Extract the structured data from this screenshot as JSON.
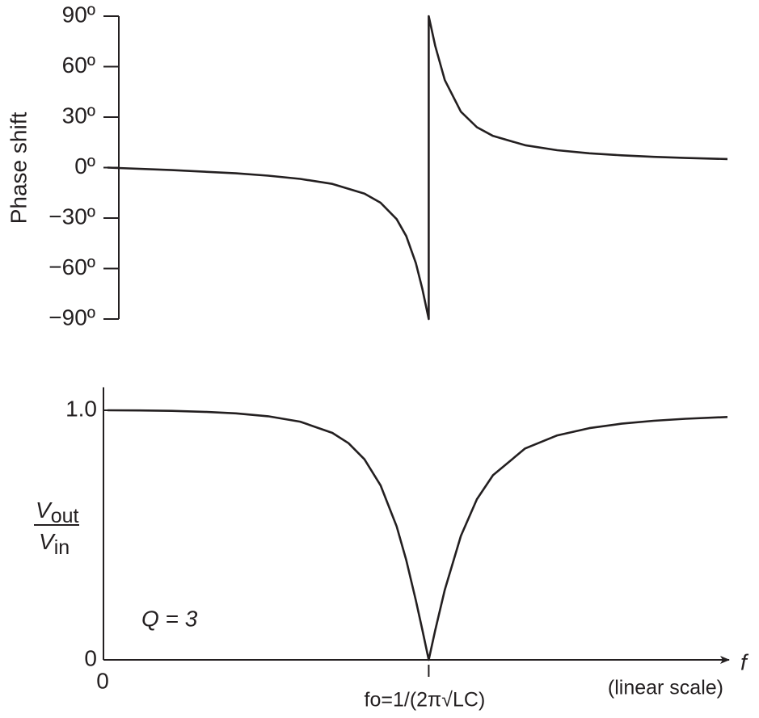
{
  "chart_data": [
    {
      "type": "line",
      "y_label": "Phase shift",
      "x": [
        0,
        0.2,
        0.4,
        0.5,
        0.6,
        0.7,
        0.8,
        0.85,
        0.9,
        0.93,
        0.96,
        0.98,
        1,
        1,
        1.02,
        1.05,
        1.1,
        1.15,
        1.2,
        1.3,
        1.4,
        1.5,
        1.6,
        1.7,
        1.8,
        1.93
      ],
      "values": [
        0,
        -1.5,
        -3.4,
        -4.8,
        -6.7,
        -9.7,
        -15.5,
        -20.9,
        -30.6,
        -40.7,
        -56.8,
        -72.1,
        -90,
        90,
        72.4,
        52.0,
        33.2,
        24.0,
        18.8,
        13.3,
        10.3,
        8.5,
        7.3,
        6.4,
        5.7,
        5.1
      ],
      "color": "#231f20",
      "xlim": [
        0,
        1.93
      ],
      "ylim": [
        -90,
        90
      ],
      "yticks": [
        {
          "value": -90,
          "label": "−90º"
        },
        {
          "value": -60,
          "label": "−60º"
        },
        {
          "value": -30,
          "label": "−30º"
        },
        {
          "value": 0,
          "label": "0º"
        },
        {
          "value": 30,
          "label": "30º"
        },
        {
          "value": 60,
          "label": "60º"
        },
        {
          "value": 90,
          "label": "90º"
        }
      ]
    },
    {
      "type": "line",
      "y_label": {
        "numerator": [
          "V",
          "out"
        ],
        "denominator": [
          "V",
          "in"
        ]
      },
      "x_label": "f",
      "x_note": "(linear scale)",
      "annotation": "Q = 3",
      "x": [
        0,
        0.1,
        0.2,
        0.3,
        0.4,
        0.5,
        0.6,
        0.7,
        0.75,
        0.8,
        0.85,
        0.9,
        0.93,
        0.96,
        0.98,
        1,
        1.02,
        1.05,
        1.1,
        1.15,
        1.2,
        1.3,
        1.4,
        1.5,
        1.6,
        1.7,
        1.8,
        1.93
      ],
      "values": [
        1,
        0.9994,
        0.9976,
        0.994,
        0.9876,
        0.9762,
        0.9545,
        0.9094,
        0.8682,
        0.8036,
        0.6995,
        0.5351,
        0.3996,
        0.2379,
        0.1203,
        0,
        0.1181,
        0.281,
        0.4969,
        0.6438,
        0.7399,
        0.8468,
        0.8994,
        0.9285,
        0.9463,
        0.9579,
        0.9659,
        0.9733
      ],
      "color": "#231f20",
      "xlim": [
        0,
        1.93
      ],
      "ylim": [
        0,
        1.06
      ],
      "xticks": [
        {
          "value": 0,
          "label": "0"
        },
        {
          "value": 1,
          "label": "fo=1/(2π√LC)"
        }
      ],
      "yticks": [
        0,
        {
          "value": 1,
          "label": "1.0"
        }
      ]
    }
  ]
}
